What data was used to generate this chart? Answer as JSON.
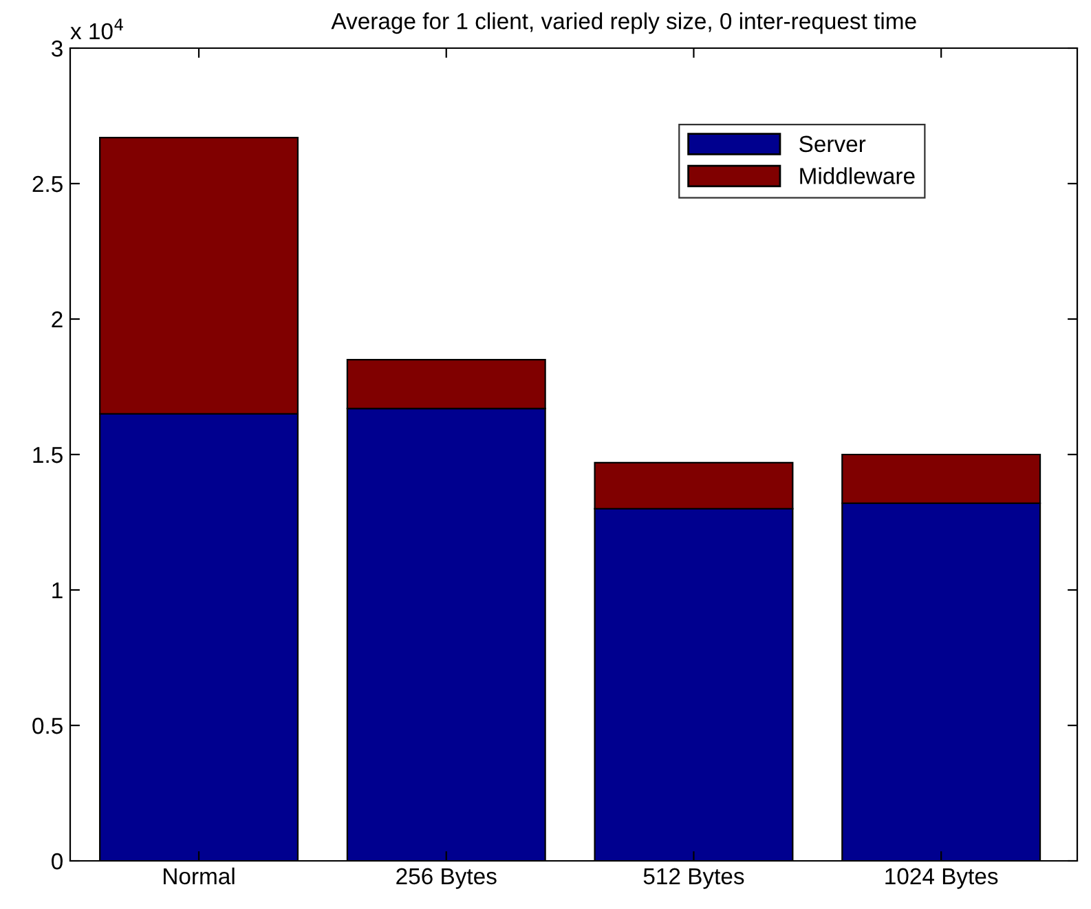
{
  "chart_data": {
    "type": "bar",
    "stacked": true,
    "title": "Average for 1 client, varied reply size, 0 inter-request time",
    "categories": [
      "Normal",
      "256 Bytes",
      "512 Bytes",
      "1024 Bytes"
    ],
    "series": [
      {
        "name": "Server",
        "color": "#00008f",
        "values": [
          1.65,
          1.67,
          1.3,
          1.32
        ]
      },
      {
        "name": "Middleware",
        "color": "#800000",
        "values": [
          1.02,
          0.18,
          0.17,
          0.18
        ]
      }
    ],
    "ylim": [
      0,
      3
    ],
    "yticks": [
      0,
      0.5,
      1,
      1.5,
      2,
      2.5,
      3
    ],
    "annotations": [
      "x 10$^{4}$"
    ],
    "grid": false,
    "legend": "top right"
  }
}
